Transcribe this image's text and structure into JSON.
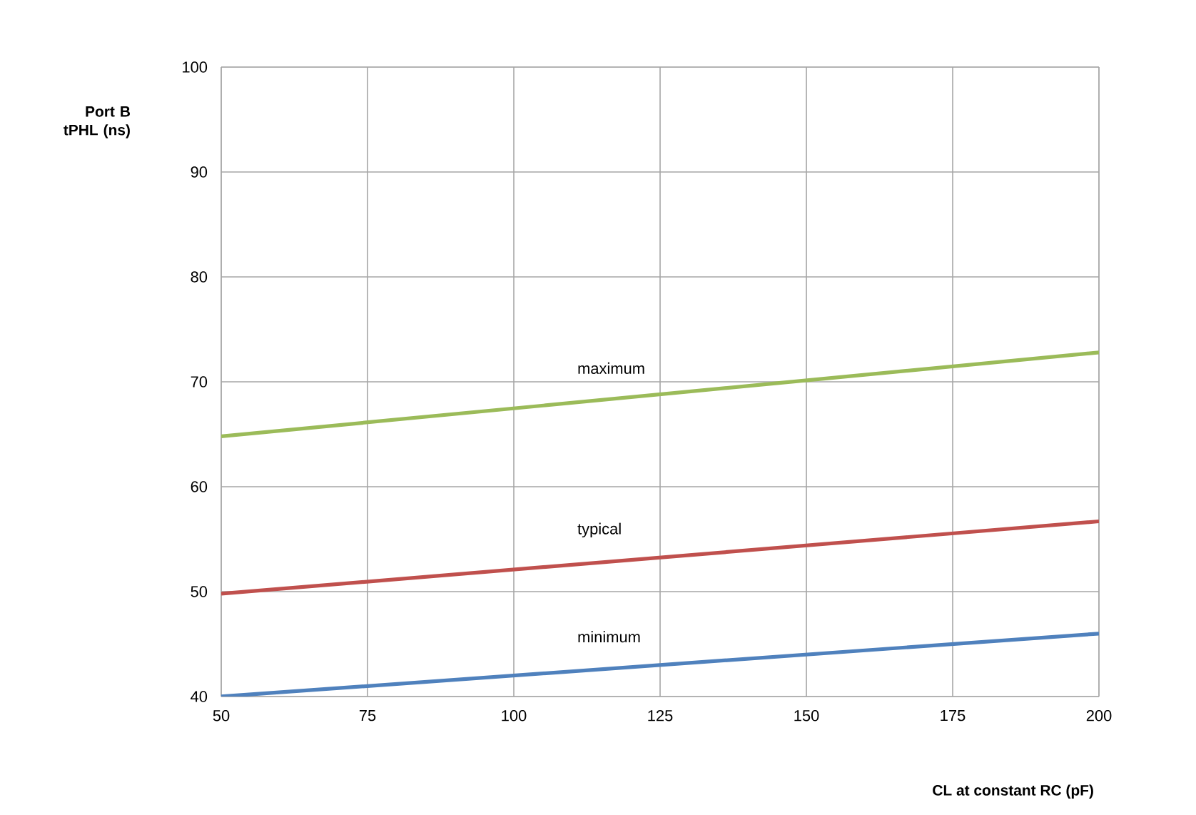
{
  "chart_data": {
    "type": "line",
    "xlabel": "CL at constant  RC (pF)",
    "ylabel": "Port B tPHL (ns)",
    "x": [
      50,
      200
    ],
    "series": [
      {
        "name": "maximum",
        "color": "#9bbb59",
        "values": [
          64.8,
          72.8
        ]
      },
      {
        "name": "typical",
        "color": "#c0504d",
        "values": [
          49.8,
          56.7
        ]
      },
      {
        "name": "minimum",
        "color": "#4f81bd",
        "values": [
          40,
          46
        ]
      }
    ],
    "xlim": [
      50,
      200
    ],
    "xticks": [
      50,
      75,
      100,
      125,
      150,
      175,
      200
    ],
    "ylim": [
      40,
      100
    ],
    "yticks": [
      40,
      50,
      60,
      70,
      80,
      90,
      100
    ],
    "grid": true,
    "legend": false,
    "marker": "none",
    "line_style": "solid"
  }
}
